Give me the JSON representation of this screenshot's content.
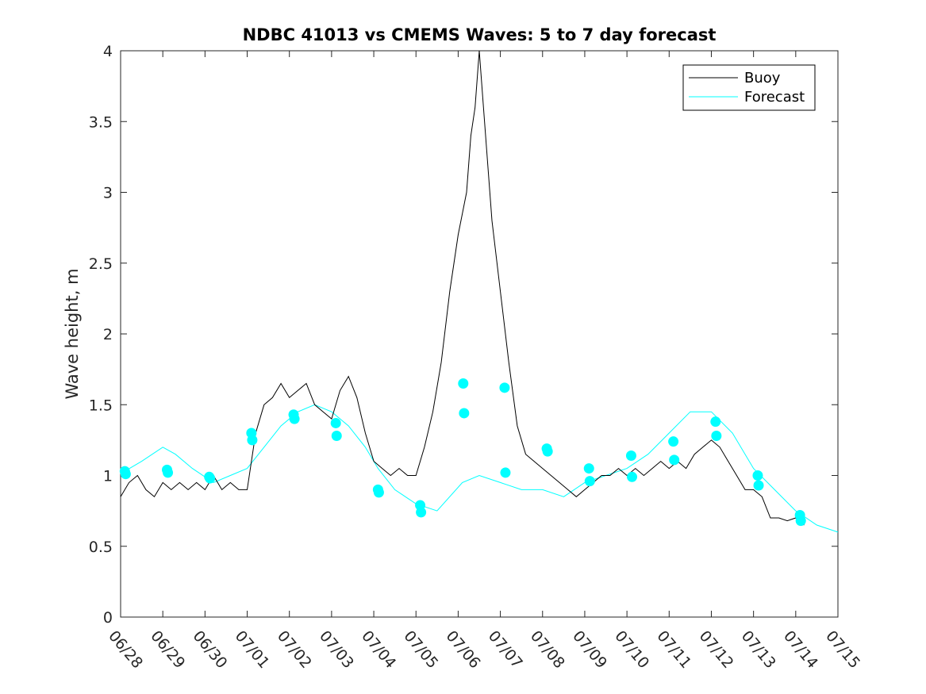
{
  "chart_data": {
    "type": "line",
    "title": "NDBC 41013 vs CMEMS Waves: 5 to 7 day forecast",
    "xlabel": "",
    "ylabel": "Wave height, m",
    "xlim": [
      0,
      17
    ],
    "ylim": [
      0,
      4
    ],
    "x_tick_labels": [
      "06/28",
      "06/29",
      "06/30",
      "07/01",
      "07/02",
      "07/03",
      "07/04",
      "07/05",
      "07/06",
      "07/07",
      "07/08",
      "07/09",
      "07/10",
      "07/11",
      "07/12",
      "07/13",
      "07/14",
      "07/15"
    ],
    "y_ticks": [
      0,
      0.5,
      1,
      1.5,
      2,
      2.5,
      3,
      3.5,
      4
    ],
    "y_tick_labels": [
      "0",
      "0.5",
      "1",
      "1.5",
      "2",
      "2.5",
      "3",
      "3.5",
      "4"
    ],
    "grid": false,
    "legend_position": "top-right",
    "colors": {
      "buoy": "#000000",
      "forecast": "#00ffff"
    },
    "series": [
      {
        "name": "Buoy",
        "points": [
          [
            0.0,
            0.85
          ],
          [
            0.2,
            0.95
          ],
          [
            0.4,
            1.0
          ],
          [
            0.6,
            0.9
          ],
          [
            0.8,
            0.85
          ],
          [
            1.0,
            0.95
          ],
          [
            1.2,
            0.9
          ],
          [
            1.4,
            0.95
          ],
          [
            1.6,
            0.9
          ],
          [
            1.8,
            0.95
          ],
          [
            2.0,
            0.9
          ],
          [
            2.2,
            1.0
          ],
          [
            2.4,
            0.9
          ],
          [
            2.6,
            0.95
          ],
          [
            2.8,
            0.9
          ],
          [
            3.0,
            0.9
          ],
          [
            3.2,
            1.3
          ],
          [
            3.4,
            1.5
          ],
          [
            3.6,
            1.55
          ],
          [
            3.8,
            1.65
          ],
          [
            4.0,
            1.55
          ],
          [
            4.2,
            1.6
          ],
          [
            4.4,
            1.65
          ],
          [
            4.6,
            1.5
          ],
          [
            4.8,
            1.45
          ],
          [
            5.0,
            1.4
          ],
          [
            5.2,
            1.6
          ],
          [
            5.4,
            1.7
          ],
          [
            5.6,
            1.55
          ],
          [
            5.8,
            1.3
          ],
          [
            6.0,
            1.1
          ],
          [
            6.2,
            1.05
          ],
          [
            6.4,
            1.0
          ],
          [
            6.6,
            1.05
          ],
          [
            6.8,
            1.0
          ],
          [
            7.0,
            1.0
          ],
          [
            7.2,
            1.2
          ],
          [
            7.4,
            1.45
          ],
          [
            7.6,
            1.8
          ],
          [
            7.8,
            2.3
          ],
          [
            8.0,
            2.7
          ],
          [
            8.2,
            3.0
          ],
          [
            8.3,
            3.4
          ],
          [
            8.4,
            3.6
          ],
          [
            8.5,
            4.0
          ],
          [
            8.6,
            3.6
          ],
          [
            8.8,
            2.8
          ],
          [
            9.0,
            2.3
          ],
          [
            9.2,
            1.8
          ],
          [
            9.4,
            1.35
          ],
          [
            9.6,
            1.15
          ],
          [
            9.8,
            1.1
          ],
          [
            10.0,
            1.05
          ],
          [
            10.2,
            1.0
          ],
          [
            10.4,
            0.95
          ],
          [
            10.6,
            0.9
          ],
          [
            10.8,
            0.85
          ],
          [
            11.0,
            0.9
          ],
          [
            11.2,
            0.95
          ],
          [
            11.4,
            1.0
          ],
          [
            11.6,
            1.0
          ],
          [
            11.8,
            1.05
          ],
          [
            12.0,
            1.0
          ],
          [
            12.2,
            1.05
          ],
          [
            12.4,
            1.0
          ],
          [
            12.6,
            1.05
          ],
          [
            12.8,
            1.1
          ],
          [
            13.0,
            1.05
          ],
          [
            13.2,
            1.1
          ],
          [
            13.4,
            1.05
          ],
          [
            13.6,
            1.15
          ],
          [
            13.8,
            1.2
          ],
          [
            14.0,
            1.25
          ],
          [
            14.2,
            1.2
          ],
          [
            14.4,
            1.1
          ],
          [
            14.6,
            1.0
          ],
          [
            14.8,
            0.9
          ],
          [
            15.0,
            0.9
          ],
          [
            15.2,
            0.85
          ],
          [
            15.4,
            0.7
          ],
          [
            15.6,
            0.7
          ],
          [
            15.8,
            0.68
          ],
          [
            16.0,
            0.7
          ],
          [
            16.2,
            0.65
          ]
        ]
      },
      {
        "name": "Forecast",
        "points": [
          [
            0.1,
            1.03
          ],
          [
            0.5,
            1.1
          ],
          [
            1.0,
            1.2
          ],
          [
            1.3,
            1.15
          ],
          [
            1.7,
            1.05
          ],
          [
            2.2,
            0.95
          ],
          [
            2.6,
            1.0
          ],
          [
            3.0,
            1.05
          ],
          [
            3.4,
            1.2
          ],
          [
            3.8,
            1.35
          ],
          [
            4.2,
            1.45
          ],
          [
            4.6,
            1.5
          ],
          [
            5.0,
            1.45
          ],
          [
            5.4,
            1.35
          ],
          [
            5.8,
            1.2
          ],
          [
            6.1,
            1.05
          ],
          [
            6.5,
            0.9
          ],
          [
            7.0,
            0.8
          ],
          [
            7.5,
            0.75
          ],
          [
            8.1,
            0.95
          ],
          [
            8.5,
            1.0
          ],
          [
            9.0,
            0.95
          ],
          [
            9.5,
            0.9
          ],
          [
            10.0,
            0.9
          ],
          [
            10.5,
            0.85
          ],
          [
            11.0,
            0.95
          ],
          [
            11.5,
            1.0
          ],
          [
            12.0,
            1.05
          ],
          [
            12.5,
            1.15
          ],
          [
            13.0,
            1.3
          ],
          [
            13.5,
            1.45
          ],
          [
            14.0,
            1.45
          ],
          [
            14.5,
            1.3
          ],
          [
            15.0,
            1.05
          ],
          [
            15.5,
            0.9
          ],
          [
            16.0,
            0.75
          ],
          [
            16.5,
            0.65
          ],
          [
            17.0,
            0.6
          ]
        ],
        "markers": [
          [
            0.1,
            1.03
          ],
          [
            0.12,
            1.01
          ],
          [
            1.1,
            1.04
          ],
          [
            1.12,
            1.02
          ],
          [
            2.1,
            0.99
          ],
          [
            2.12,
            0.98
          ],
          [
            3.1,
            1.3
          ],
          [
            3.12,
            1.25
          ],
          [
            4.1,
            1.43
          ],
          [
            4.12,
            1.4
          ],
          [
            5.1,
            1.37
          ],
          [
            5.12,
            1.28
          ],
          [
            6.1,
            0.9
          ],
          [
            6.12,
            0.88
          ],
          [
            7.1,
            0.79
          ],
          [
            7.12,
            0.74
          ],
          [
            8.12,
            1.65
          ],
          [
            8.14,
            1.44
          ],
          [
            9.1,
            1.62
          ],
          [
            9.12,
            1.02
          ],
          [
            10.1,
            1.19
          ],
          [
            10.12,
            1.17
          ],
          [
            11.1,
            1.05
          ],
          [
            11.12,
            0.96
          ],
          [
            12.1,
            1.14
          ],
          [
            12.12,
            0.99
          ],
          [
            13.1,
            1.24
          ],
          [
            13.12,
            1.11
          ],
          [
            14.1,
            1.38
          ],
          [
            14.12,
            1.28
          ],
          [
            15.1,
            1.0
          ],
          [
            15.12,
            0.93
          ],
          [
            16.1,
            0.72
          ],
          [
            16.12,
            0.68
          ]
        ]
      }
    ]
  }
}
